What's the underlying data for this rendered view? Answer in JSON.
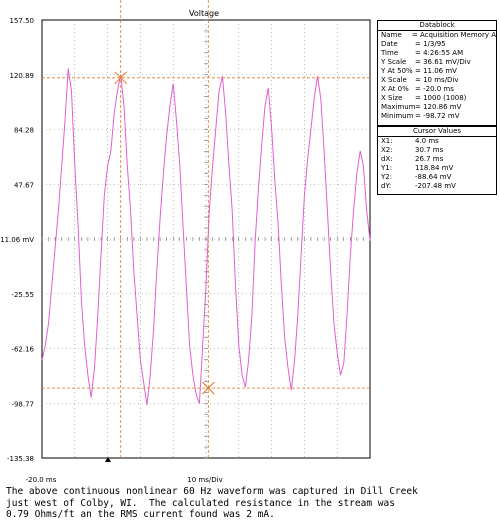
{
  "chart_data": {
    "type": "line",
    "title": "Voltage",
    "xlabel": "10 ms/Div",
    "x_start_label": "-20.0 ms",
    "y_ticks": [
      "157.50",
      "120.89",
      "84.28",
      "47.67",
      "11.06 mV",
      "-25.55",
      "-62.16",
      "-98.77",
      "-135.38"
    ],
    "ylim": [
      -135.38,
      157.5
    ],
    "xlim": [
      -20,
      80
    ],
    "grid": true,
    "series": [
      {
        "color": "#e060d0",
        "x": [
          -20,
          -19,
          -18,
          -17,
          -16,
          -15,
          -14,
          -13,
          -12,
          -11,
          -10,
          -9,
          -8,
          -7,
          -6,
          -5,
          -4,
          -3,
          -2,
          -1,
          0,
          1,
          2,
          3,
          4,
          5,
          6,
          7,
          8,
          9,
          10,
          11,
          12,
          13,
          14,
          15,
          16,
          17,
          18,
          19,
          20,
          21,
          22,
          23,
          24,
          25,
          26,
          27,
          28,
          29,
          30,
          31,
          32,
          33,
          34,
          35,
          36,
          37,
          38,
          39,
          40,
          41,
          42,
          43,
          44,
          45,
          46,
          47,
          48,
          49,
          50,
          51,
          52,
          53,
          54,
          55,
          56,
          57,
          58,
          59,
          60,
          61,
          62,
          63,
          64,
          65,
          66,
          67,
          68,
          69,
          70,
          71,
          72,
          73,
          74,
          75,
          76,
          77,
          78,
          79,
          80
        ],
        "y": [
          -70,
          -60,
          -45,
          -20,
          5,
          30,
          60,
          90,
          125,
          110,
          60,
          20,
          -30,
          -60,
          -80,
          -95,
          -75,
          -40,
          0,
          40,
          60,
          70,
          95,
          110,
          121,
          100,
          60,
          30,
          -10,
          -40,
          -70,
          -85,
          -100,
          -80,
          -50,
          -10,
          25,
          55,
          80,
          100,
          115,
          90,
          60,
          20,
          -20,
          -60,
          -80,
          -93,
          -99,
          -60,
          -20,
          30,
          60,
          85,
          110,
          120,
          95,
          60,
          30,
          -20,
          -60,
          -80,
          -88,
          -70,
          -40,
          10,
          45,
          75,
          100,
          112,
          85,
          50,
          20,
          -20,
          -55,
          -75,
          -90,
          -70,
          -40,
          0,
          40,
          65,
          85,
          105,
          120,
          105,
          70,
          30,
          -10,
          -45,
          -65,
          -80,
          -72,
          -40,
          0,
          30,
          55,
          70,
          60,
          30,
          10
        ]
      }
    ],
    "cursors": [
      {
        "x": 4.0,
        "y": 118.84
      },
      {
        "x": 30.7,
        "y": -88.64
      }
    ]
  },
  "datablock": {
    "title": "Datablock",
    "rows": [
      {
        "label": "Name",
        "value": "= Acquisition Memory A"
      },
      {
        "label": "Date",
        "value": "= 1/3/95"
      },
      {
        "label": "Time",
        "value": "= 4:26:55 AM"
      },
      {
        "label": "Y Scale",
        "value": "= 36.61 mV/Div"
      },
      {
        "label": "Y At 50%",
        "value": "= 11.06 mV"
      },
      {
        "label": "X Scale",
        "value": "= 10 ms/Div"
      },
      {
        "label": "X At 0%",
        "value": "= -20.0 ms"
      },
      {
        "label": "X Size",
        "value": "= 1000 (1008)"
      },
      {
        "label": "Maximum",
        "value": "= 120.86 mV"
      },
      {
        "label": "Minimum",
        "value": "= -98.72 mV"
      }
    ]
  },
  "cursor_values": {
    "title": "Cursor Values",
    "rows": [
      {
        "label": "X1:",
        "value": "4.0 ms"
      },
      {
        "label": "X2:",
        "value": "30.7 ms"
      },
      {
        "label": "dX:",
        "value": "26.7 ms"
      },
      {
        "label": "Y1:",
        "value": "118.84 mV"
      },
      {
        "label": "Y2:",
        "value": "-88.64 mV"
      },
      {
        "label": "dY:",
        "value": "-207.48 mV"
      }
    ]
  },
  "caption": "The above continuous nonlinear 60 Hz waveform was captured in Dill Creek\njust west of Colby, WI.  The calculated resistance in the stream was\n0.79 Ohms/ft an the RMS current found was 2 mA.",
  "colors": {
    "trace": "#e060d0",
    "cursor": "#e07820",
    "grid": "#888888"
  }
}
